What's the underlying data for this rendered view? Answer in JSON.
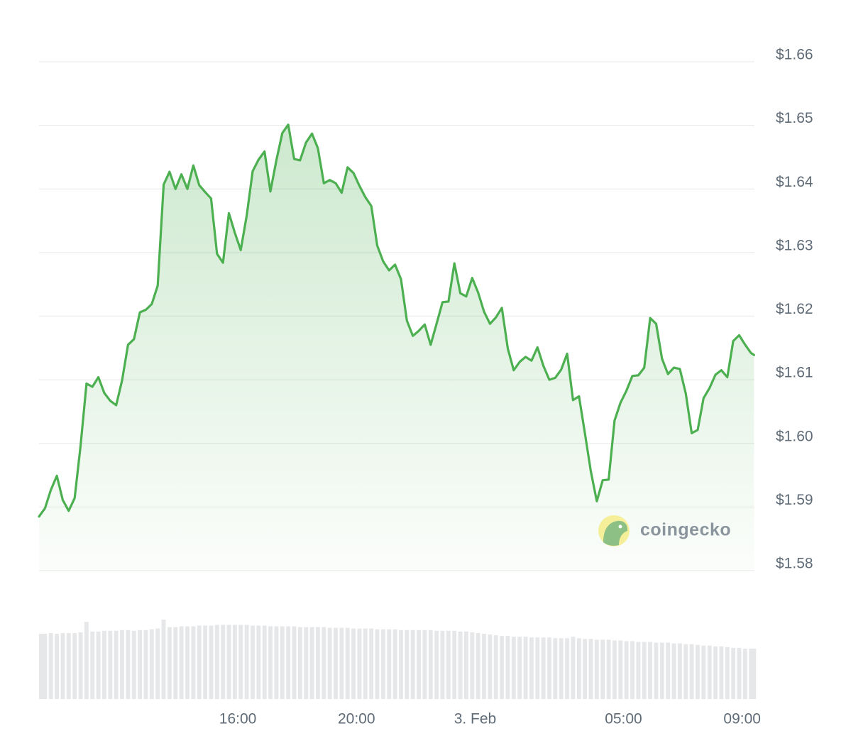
{
  "chart_data": {
    "type": "line",
    "watermark": "coingecko",
    "x": [
      9.3,
      9.5,
      9.7,
      9.9,
      10.1,
      10.3,
      10.5,
      10.7,
      10.9,
      11.1,
      11.3,
      11.5,
      11.7,
      11.9,
      12.1,
      12.3,
      12.5,
      12.7,
      12.9,
      13.1,
      13.3,
      13.5,
      13.7,
      13.9,
      14.1,
      14.3,
      14.5,
      14.7,
      14.9,
      15.1,
      15.3,
      15.5,
      15.7,
      15.9,
      16.1,
      16.3,
      16.5,
      16.7,
      16.9,
      17.1,
      17.3,
      17.5,
      17.7,
      17.9,
      18.1,
      18.3,
      18.5,
      18.7,
      18.9,
      19.1,
      19.3,
      19.5,
      19.7,
      19.9,
      20.1,
      20.3,
      20.5,
      20.7,
      20.9,
      21.1,
      21.3,
      21.5,
      21.7,
      21.9,
      22.1,
      22.3,
      22.5,
      22.7,
      22.9,
      23.1,
      23.3,
      23.5,
      23.7,
      23.9,
      24.1,
      24.3,
      24.5,
      24.7,
      24.9,
      25.1,
      25.3,
      25.5,
      25.7,
      25.9,
      26.1,
      26.3,
      26.5,
      26.7,
      26.9,
      27.1,
      27.3,
      27.5,
      27.7,
      27.9,
      28.1,
      28.3,
      28.5,
      28.7,
      28.9,
      29.1,
      29.3,
      29.5,
      29.7,
      29.9,
      30.1,
      30.3,
      30.5,
      30.7,
      30.9,
      31.1,
      31.3,
      31.5,
      31.7,
      31.9,
      32.1,
      32.3,
      32.5,
      32.7,
      32.9,
      33.1,
      33.3,
      33.4
    ],
    "series": [
      {
        "color": "#4caf50",
        "values": [
          1.5885,
          1.5898,
          1.5927,
          1.5949,
          1.5911,
          1.5894,
          1.5914,
          1.5996,
          1.6094,
          1.6089,
          1.6104,
          1.6079,
          1.6067,
          1.606,
          1.6099,
          1.6155,
          1.6164,
          1.6206,
          1.621,
          1.6219,
          1.6248,
          1.6407,
          1.6427,
          1.64,
          1.6423,
          1.64,
          1.6437,
          1.6406,
          1.6395,
          1.6385,
          1.6298,
          1.6284,
          1.6362,
          1.6331,
          1.6304,
          1.6358,
          1.6428,
          1.6446,
          1.6459,
          1.6396,
          1.6445,
          1.6488,
          1.6501,
          1.6447,
          1.6445,
          1.6473,
          1.6487,
          1.6464,
          1.6409,
          1.6414,
          1.6409,
          1.6394,
          1.6434,
          1.6425,
          1.6405,
          1.6387,
          1.6373,
          1.6311,
          1.6286,
          1.6272,
          1.6281,
          1.6258,
          1.6193,
          1.6169,
          1.6177,
          1.6187,
          1.6155,
          1.6188,
          1.6222,
          1.6223,
          1.6283,
          1.6236,
          1.6231,
          1.626,
          1.6237,
          1.6207,
          1.6188,
          1.6198,
          1.6213,
          1.6149,
          1.6115,
          1.6128,
          1.6136,
          1.613,
          1.6151,
          1.6122,
          1.61,
          1.6103,
          1.6116,
          1.6141,
          1.6068,
          1.6074,
          1.6016,
          1.5956,
          1.5909,
          1.5942,
          1.5943,
          1.6036,
          1.6064,
          1.6083,
          1.6106,
          1.6107,
          1.6119,
          1.6197,
          1.6188,
          1.6133,
          1.6109,
          1.6119,
          1.6117,
          1.6078,
          1.6016,
          1.6021,
          1.6071,
          1.6087,
          1.6108,
          1.6115,
          1.6104,
          1.6161,
          1.617,
          1.6155,
          1.6142,
          1.6139
        ]
      },
      {
        "color": "#e6e7e9",
        "axis": "y2",
        "type": "bar",
        "values": [
          88,
          88,
          89,
          88,
          89,
          89,
          89,
          90,
          104,
          91,
          91,
          92,
          92,
          92,
          93,
          93,
          92,
          93,
          93,
          94,
          95,
          107,
          97,
          97,
          98,
          98,
          98,
          99,
          99,
          99,
          100,
          100,
          100,
          100,
          100,
          100,
          99,
          99,
          99,
          98,
          98,
          98,
          98,
          98,
          97,
          97,
          97,
          97,
          97,
          96,
          96,
          96,
          96,
          95,
          95,
          95,
          95,
          94,
          94,
          94,
          94,
          93,
          93,
          93,
          93,
          93,
          93,
          92,
          92,
          92,
          92,
          91,
          91,
          90,
          89,
          88,
          87,
          86,
          85,
          85,
          84,
          84,
          84,
          83,
          83,
          83,
          83,
          82,
          82,
          82,
          84,
          82,
          81,
          81,
          80,
          80,
          80,
          79,
          79,
          78,
          78,
          77,
          77,
          77,
          76,
          76,
          76,
          75,
          75,
          74,
          74,
          73,
          72,
          72,
          71,
          71,
          70,
          69,
          69,
          68,
          68,
          68
        ]
      }
    ],
    "xlim": [
      9.3,
      33.4
    ],
    "xticks": [
      {
        "value": 16,
        "label": "16:00"
      },
      {
        "value": 20,
        "label": "20:00"
      },
      {
        "value": 24,
        "label": "3. Feb"
      },
      {
        "value": 29,
        "label": "05:00"
      },
      {
        "value": 33,
        "label": "09:00"
      }
    ],
    "ylim": [
      1.58,
      1.66
    ],
    "yticks": [
      {
        "value": 1.58,
        "label": "$1.58"
      },
      {
        "value": 1.59,
        "label": "$1.59"
      },
      {
        "value": 1.6,
        "label": "$1.60"
      },
      {
        "value": 1.61,
        "label": "$1.61"
      },
      {
        "value": 1.62,
        "label": "$1.62"
      },
      {
        "value": 1.63,
        "label": "$1.63"
      },
      {
        "value": 1.64,
        "label": "$1.64"
      },
      {
        "value": 1.65,
        "label": "$1.65"
      },
      {
        "value": 1.66,
        "label": "$1.66"
      }
    ],
    "y2lim": [
      0,
      110
    ],
    "grid": true
  }
}
